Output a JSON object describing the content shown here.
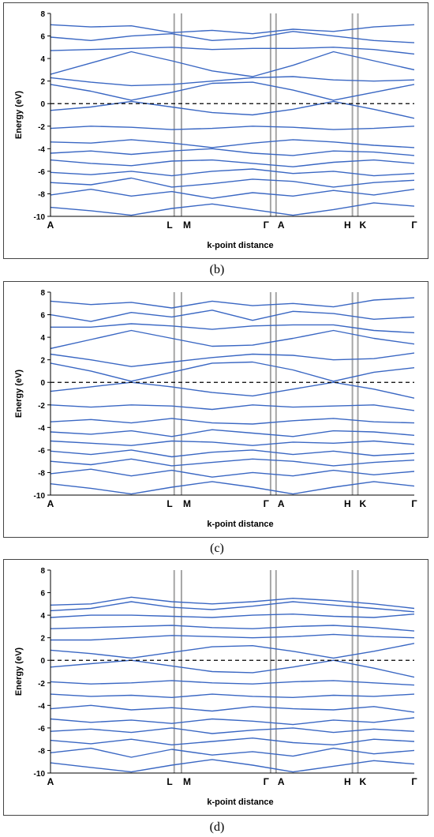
{
  "chart_data": [
    {
      "type": "line",
      "panel": "b",
      "caption": "(b)",
      "xlabel": "k-point distance",
      "ylabel": "Energy (eV)",
      "ylim": [
        -10,
        8
      ],
      "yticks": [
        -10,
        -8,
        -6,
        -4,
        -2,
        0,
        2,
        4,
        6,
        8
      ],
      "high_symmetry_labels": [
        "A",
        "L",
        "M",
        "Γ",
        "A",
        "H",
        "K",
        "Γ"
      ],
      "high_symmetry_x": [
        0,
        0.34,
        0.36,
        0.605,
        0.62,
        0.83,
        0.845,
        1.0
      ],
      "fermi_level": 0,
      "grid": false,
      "series": [
        {
          "values": [
            7.0,
            6.8,
            6.9,
            6.3,
            6.5,
            6.2,
            6.6,
            6.4,
            6.8,
            7.0
          ]
        },
        {
          "values": [
            5.9,
            5.6,
            6.0,
            6.2,
            5.6,
            5.8,
            6.4,
            6.0,
            5.6,
            5.4
          ]
        },
        {
          "values": [
            4.7,
            4.8,
            4.9,
            5.0,
            4.8,
            4.9,
            4.9,
            5.0,
            4.8,
            4.4
          ]
        },
        {
          "values": [
            2.6,
            3.6,
            4.6,
            3.8,
            2.9,
            2.4,
            3.4,
            4.6,
            3.8,
            3.0
          ]
        },
        {
          "values": [
            2.3,
            1.9,
            1.6,
            1.7,
            2.0,
            2.3,
            2.4,
            2.1,
            2.0,
            2.1
          ]
        },
        {
          "values": [
            1.7,
            1.1,
            0.3,
            1.0,
            1.8,
            1.9,
            1.2,
            0.3,
            1.0,
            1.7
          ]
        },
        {
          "values": [
            -0.6,
            -0.3,
            0.2,
            -0.3,
            -0.8,
            -1.0,
            -0.5,
            0.2,
            -0.5,
            -1.3
          ]
        },
        {
          "values": [
            -2.2,
            -2.0,
            -2.1,
            -2.3,
            -2.2,
            -2.0,
            -2.1,
            -2.3,
            -2.2,
            -2.0
          ]
        },
        {
          "values": [
            -3.4,
            -3.5,
            -3.2,
            -3.5,
            -3.9,
            -3.5,
            -3.2,
            -3.4,
            -3.7,
            -3.9
          ]
        },
        {
          "values": [
            -4.4,
            -4.2,
            -4.5,
            -4.2,
            -4.0,
            -4.4,
            -4.6,
            -4.2,
            -4.3,
            -4.6
          ]
        },
        {
          "values": [
            -5.0,
            -5.3,
            -5.5,
            -5.1,
            -5.0,
            -5.3,
            -5.6,
            -5.2,
            -5.0,
            -5.3
          ]
        },
        {
          "values": [
            -6.1,
            -6.3,
            -6.0,
            -6.4,
            -6.0,
            -5.8,
            -6.2,
            -6.0,
            -6.4,
            -6.2
          ]
        },
        {
          "values": [
            -7.0,
            -7.2,
            -6.6,
            -7.4,
            -7.1,
            -6.7,
            -6.9,
            -7.4,
            -7.0,
            -6.8
          ]
        },
        {
          "values": [
            -8.1,
            -7.6,
            -8.2,
            -7.8,
            -8.4,
            -7.9,
            -8.2,
            -7.7,
            -8.1,
            -7.6
          ]
        },
        {
          "values": [
            -9.2,
            -9.5,
            -9.9,
            -9.3,
            -8.9,
            -9.4,
            -9.9,
            -9.4,
            -8.8,
            -9.1
          ]
        }
      ]
    },
    {
      "type": "line",
      "panel": "c",
      "caption": "(c)",
      "xlabel": "k-point distance",
      "ylabel": "Energy (eV)",
      "ylim": [
        -10,
        8
      ],
      "yticks": [
        -10,
        -8,
        -6,
        -4,
        -2,
        0,
        2,
        4,
        6,
        8
      ],
      "high_symmetry_labels": [
        "A",
        "L",
        "M",
        "Γ",
        "A",
        "H",
        "K",
        "Γ"
      ],
      "high_symmetry_x": [
        0,
        0.34,
        0.36,
        0.605,
        0.62,
        0.83,
        0.845,
        1.0
      ],
      "fermi_level": 0,
      "grid": false,
      "series": [
        {
          "values": [
            7.2,
            6.9,
            7.1,
            6.6,
            7.2,
            6.8,
            7.0,
            6.7,
            7.3,
            7.5
          ]
        },
        {
          "values": [
            6.0,
            5.4,
            6.2,
            5.8,
            6.4,
            5.5,
            6.3,
            6.1,
            5.6,
            5.8
          ]
        },
        {
          "values": [
            4.9,
            4.9,
            5.2,
            5.0,
            4.7,
            5.0,
            5.1,
            5.1,
            4.6,
            4.4
          ]
        },
        {
          "values": [
            3.0,
            3.8,
            4.6,
            3.9,
            3.2,
            3.3,
            3.9,
            4.6,
            3.9,
            3.4
          ]
        },
        {
          "values": [
            2.5,
            2.0,
            1.4,
            1.8,
            2.2,
            2.5,
            2.4,
            2.0,
            2.1,
            2.6
          ]
        },
        {
          "values": [
            1.7,
            1.0,
            0.1,
            0.9,
            1.7,
            1.8,
            1.1,
            0.1,
            0.9,
            1.3
          ]
        },
        {
          "values": [
            -0.8,
            -0.4,
            0.0,
            -0.4,
            -0.9,
            -1.2,
            -0.6,
            0.0,
            -0.6,
            -1.4
          ]
        },
        {
          "values": [
            -2.0,
            -2.2,
            -2.0,
            -2.1,
            -2.4,
            -2.0,
            -2.2,
            -2.1,
            -2.0,
            -2.5
          ]
        },
        {
          "values": [
            -3.5,
            -3.3,
            -3.6,
            -3.2,
            -3.6,
            -3.7,
            -3.4,
            -3.2,
            -3.5,
            -3.6
          ]
        },
        {
          "values": [
            -4.4,
            -4.6,
            -4.3,
            -4.8,
            -4.2,
            -4.5,
            -4.8,
            -4.3,
            -4.4,
            -4.7
          ]
        },
        {
          "values": [
            -5.2,
            -5.4,
            -5.6,
            -5.2,
            -5.3,
            -5.6,
            -5.3,
            -5.4,
            -5.2,
            -5.5
          ]
        },
        {
          "values": [
            -6.1,
            -6.4,
            -6.0,
            -6.6,
            -6.2,
            -6.0,
            -6.4,
            -6.1,
            -6.5,
            -6.3
          ]
        },
        {
          "values": [
            -7.0,
            -7.3,
            -6.8,
            -7.4,
            -7.1,
            -6.8,
            -7.0,
            -7.4,
            -7.1,
            -6.9
          ]
        },
        {
          "values": [
            -8.1,
            -7.7,
            -8.3,
            -7.8,
            -8.4,
            -8.0,
            -8.3,
            -7.8,
            -8.2,
            -7.9
          ]
        },
        {
          "values": [
            -9.0,
            -9.4,
            -9.9,
            -9.3,
            -8.8,
            -9.3,
            -9.9,
            -9.3,
            -8.8,
            -9.2
          ]
        }
      ]
    },
    {
      "type": "line",
      "panel": "d",
      "caption": "(d)",
      "xlabel": "k-point distance",
      "ylabel": "Energy (eV)",
      "ylim": [
        -10,
        8
      ],
      "yticks": [
        -10,
        -8,
        -6,
        -4,
        -2,
        0,
        2,
        4,
        6,
        8
      ],
      "high_symmetry_labels": [
        "A",
        "L",
        "M",
        "Γ",
        "A",
        "H",
        "K",
        "Γ"
      ],
      "high_symmetry_x": [
        0,
        0.34,
        0.36,
        0.605,
        0.62,
        0.83,
        0.845,
        1.0
      ],
      "fermi_level": 0,
      "grid": false,
      "series": [
        {
          "values": [
            4.9,
            5.0,
            5.6,
            5.2,
            5.0,
            5.2,
            5.5,
            5.3,
            5.0,
            4.6
          ]
        },
        {
          "values": [
            4.4,
            4.6,
            5.2,
            4.7,
            4.5,
            4.8,
            5.2,
            4.9,
            4.6,
            4.3
          ]
        },
        {
          "values": [
            3.8,
            4.0,
            4.0,
            3.9,
            3.8,
            4.0,
            4.1,
            3.9,
            3.8,
            4.1
          ]
        },
        {
          "values": [
            2.8,
            2.9,
            3.0,
            3.1,
            2.9,
            2.8,
            3.0,
            3.1,
            2.9,
            2.6
          ]
        },
        {
          "values": [
            1.8,
            1.8,
            2.0,
            2.2,
            2.1,
            2.0,
            2.1,
            2.3,
            2.1,
            2.0
          ]
        },
        {
          "values": [
            0.9,
            0.6,
            0.2,
            0.7,
            1.2,
            1.3,
            0.8,
            0.2,
            0.8,
            1.5
          ]
        },
        {
          "values": [
            -0.6,
            -0.3,
            0.0,
            -0.5,
            -1.0,
            -1.1,
            -0.6,
            0.0,
            -0.7,
            -1.5
          ]
        },
        {
          "values": [
            -1.9,
            -2.1,
            -2.0,
            -1.8,
            -2.0,
            -2.1,
            -1.9,
            -1.8,
            -2.0,
            -2.2
          ]
        },
        {
          "values": [
            -3.0,
            -3.2,
            -3.1,
            -3.3,
            -3.0,
            -3.2,
            -3.3,
            -3.1,
            -3.2,
            -3.0
          ]
        },
        {
          "values": [
            -4.3,
            -4.0,
            -4.4,
            -4.2,
            -4.5,
            -4.1,
            -4.3,
            -4.4,
            -4.1,
            -4.6
          ]
        },
        {
          "values": [
            -5.2,
            -5.5,
            -5.3,
            -5.6,
            -5.2,
            -5.4,
            -5.7,
            -5.3,
            -5.5,
            -5.1
          ]
        },
        {
          "values": [
            -6.3,
            -6.1,
            -6.4,
            -6.0,
            -6.5,
            -6.2,
            -6.0,
            -6.4,
            -6.1,
            -6.3
          ]
        },
        {
          "values": [
            -7.1,
            -7.4,
            -7.0,
            -7.5,
            -7.2,
            -6.9,
            -7.3,
            -7.5,
            -7.0,
            -7.2
          ]
        },
        {
          "values": [
            -8.2,
            -7.8,
            -8.6,
            -7.9,
            -8.4,
            -8.1,
            -8.5,
            -7.8,
            -8.3,
            -8.0
          ]
        },
        {
          "values": [
            -9.1,
            -9.5,
            -9.9,
            -9.3,
            -8.8,
            -9.3,
            -9.9,
            -9.4,
            -8.9,
            -9.2
          ]
        }
      ]
    }
  ],
  "colors": {
    "band": "#3a67c3",
    "symmetry_line": "#a6a6a6",
    "fermi": "#000000",
    "axis": "#000000",
    "frame": "#444444"
  }
}
